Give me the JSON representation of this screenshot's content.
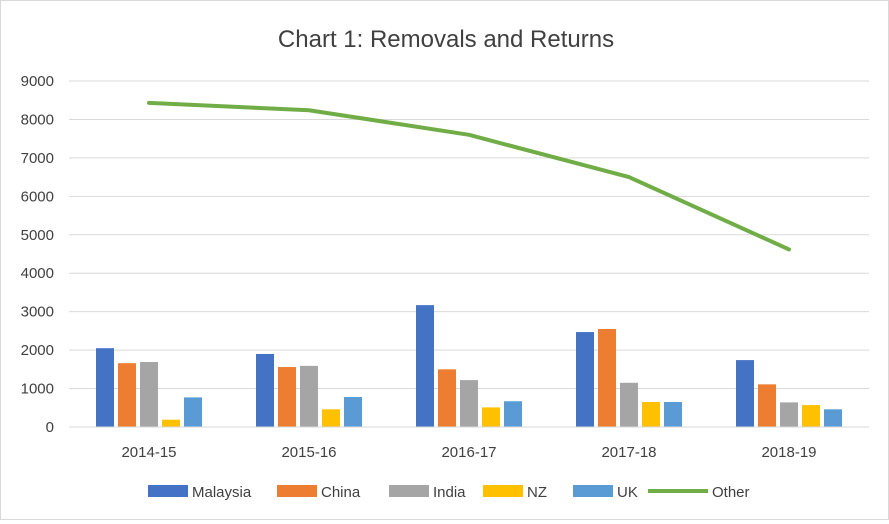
{
  "colors": {
    "Malaysia": "#4472c4",
    "China": "#ed7d31",
    "India": "#a5a5a5",
    "NZ": "#ffc000",
    "UK": "#5b9bd5",
    "Other": "#70ad47",
    "grid": "#d9d9d9",
    "text": "#404040"
  },
  "chart_data": {
    "type": "bar",
    "title": "Chart 1: Removals and Returns",
    "xlabel": "",
    "ylabel": "",
    "ylim": [
      0,
      9000
    ],
    "yticks": [
      0,
      1000,
      2000,
      3000,
      4000,
      5000,
      6000,
      7000,
      8000,
      9000
    ],
    "grid": true,
    "legend_position": "bottom",
    "categories": [
      "2014-15",
      "2015-16",
      "2016-17",
      "2017-18",
      "2018-19"
    ],
    "series": [
      {
        "name": "Malaysia",
        "type": "bar",
        "values": [
          2050,
          1900,
          3170,
          2470,
          1740
        ]
      },
      {
        "name": "China",
        "type": "bar",
        "values": [
          1660,
          1560,
          1500,
          2550,
          1110
        ]
      },
      {
        "name": "India",
        "type": "bar",
        "values": [
          1690,
          1590,
          1220,
          1150,
          640
        ]
      },
      {
        "name": "NZ",
        "type": "bar",
        "values": [
          190,
          460,
          510,
          650,
          570
        ]
      },
      {
        "name": "UK",
        "type": "bar",
        "values": [
          770,
          780,
          670,
          650,
          460
        ]
      },
      {
        "name": "Other",
        "type": "line",
        "values": [
          8430,
          8240,
          7600,
          6500,
          4620
        ]
      }
    ]
  }
}
